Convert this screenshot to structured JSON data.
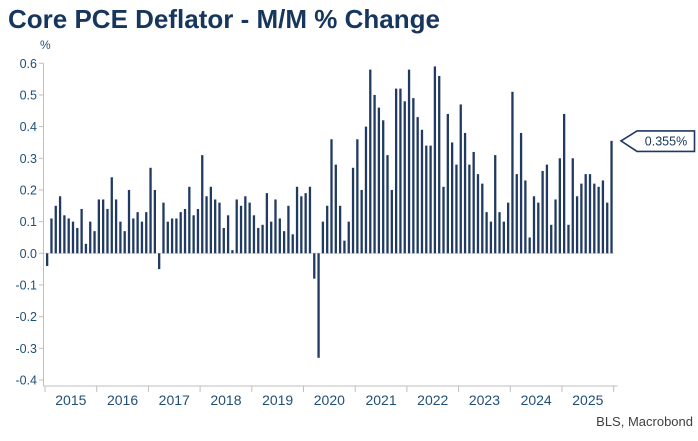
{
  "title": "Core PCE Deflator - M/M % Change",
  "unit_label": "%",
  "source": "BLS, Macrobond",
  "callout": {
    "label": "0.355%",
    "value": 0.355
  },
  "colors": {
    "bar": "#203a61",
    "title": "#17365d",
    "axis_text": "#1f4e79",
    "axis_line": "#bfbfbf",
    "zero_line": "#d9d9d9",
    "callout_border": "#1f3864",
    "callout_text": "#17365d",
    "callout_fill": "#ffffff",
    "source_text": "#404040",
    "background": "#ffffff"
  },
  "chart_data": {
    "type": "bar",
    "title": "Core PCE Deflator - M/M % Change",
    "xlabel": "",
    "ylabel": "%",
    "x_start": "2015-01",
    "x_end": "2025-12",
    "frequency": "monthly",
    "ylim": [
      -0.4,
      0.6
    ],
    "y_ticks": [
      0.6,
      0.5,
      0.4,
      0.3,
      0.2,
      0.1,
      0.0,
      -0.1,
      -0.2,
      -0.3,
      -0.4
    ],
    "year_labels": [
      "2015",
      "2016",
      "2017",
      "2018",
      "2019",
      "2020",
      "2021",
      "2022",
      "2023",
      "2024",
      "2025"
    ],
    "grid": "off",
    "legend": "none",
    "last_value_label": "0.355%",
    "values": [
      -0.04,
      0.11,
      0.15,
      0.18,
      0.12,
      0.11,
      0.1,
      0.08,
      0.14,
      0.03,
      0.1,
      0.07,
      0.17,
      0.17,
      0.14,
      0.24,
      0.17,
      0.1,
      0.07,
      0.2,
      0.11,
      0.13,
      0.1,
      0.13,
      0.27,
      0.2,
      -0.05,
      0.16,
      0.1,
      0.11,
      0.11,
      0.13,
      0.14,
      0.21,
      0.12,
      0.14,
      0.31,
      0.18,
      0.21,
      0.17,
      0.16,
      0.08,
      0.12,
      0.01,
      0.17,
      0.15,
      0.18,
      0.16,
      0.12,
      0.08,
      0.09,
      0.19,
      0.1,
      0.17,
      0.11,
      0.07,
      0.15,
      0.06,
      0.21,
      0.18,
      0.19,
      0.21,
      -0.08,
      -0.33,
      0.1,
      0.15,
      0.36,
      0.28,
      0.15,
      0.04,
      0.1,
      0.27,
      0.36,
      0.2,
      0.4,
      0.58,
      0.5,
      0.46,
      0.42,
      0.31,
      0.2,
      0.52,
      0.52,
      0.48,
      0.58,
      0.49,
      0.43,
      0.39,
      0.34,
      0.34,
      0.59,
      0.56,
      0.21,
      0.44,
      0.35,
      0.28,
      0.47,
      0.38,
      0.28,
      0.32,
      0.25,
      0.22,
      0.13,
      0.1,
      0.31,
      0.13,
      0.1,
      0.16,
      0.51,
      0.25,
      0.38,
      0.23,
      0.05,
      0.18,
      0.16,
      0.26,
      0.28,
      0.09,
      0.17,
      0.3,
      0.44,
      0.09,
      0.3,
      0.18,
      0.22,
      0.25,
      0.25,
      0.22,
      0.21,
      0.23,
      0.16,
      0.355
    ]
  }
}
